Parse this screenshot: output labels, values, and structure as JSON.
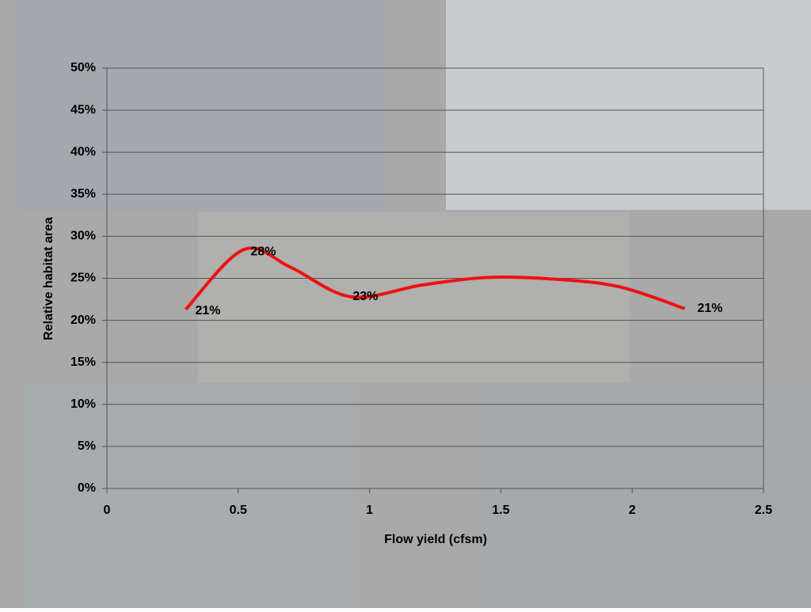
{
  "chart_data": {
    "type": "line",
    "xlabel": "Flow yield (cfsm)",
    "ylabel": "Relative habitat area",
    "x": [
      0.3,
      0.52,
      0.7,
      0.93,
      1.2,
      1.45,
      1.7,
      1.95,
      2.2
    ],
    "series": [
      {
        "name": "Relative habitat area",
        "color": "#ee1111",
        "values": [
          21.3,
          28.4,
          26.3,
          22.8,
          24.2,
          25.1,
          24.9,
          24.0,
          21.4
        ],
        "value_labels": [
          "21%",
          "28%",
          null,
          "23%",
          null,
          null,
          null,
          null,
          "21%"
        ]
      }
    ],
    "xlim": [
      0,
      2.5
    ],
    "xticks": [
      0,
      0.5,
      1,
      1.5,
      2,
      2.5
    ],
    "ylim": [
      0,
      50
    ],
    "yticks": [
      {
        "value": 0,
        "label": "0%"
      },
      {
        "value": 5,
        "label": "5%"
      },
      {
        "value": 10,
        "label": "10%"
      },
      {
        "value": 15,
        "label": "15%"
      },
      {
        "value": 20,
        "label": "20%"
      },
      {
        "value": 25,
        "label": "25%"
      },
      {
        "value": 30,
        "label": "30%"
      },
      {
        "value": 35,
        "label": "35%"
      },
      {
        "value": 40,
        "label": "40%"
      },
      {
        "value": 45,
        "label": "45%"
      },
      {
        "value": 50,
        "label": "50%"
      }
    ],
    "grid": true
  }
}
